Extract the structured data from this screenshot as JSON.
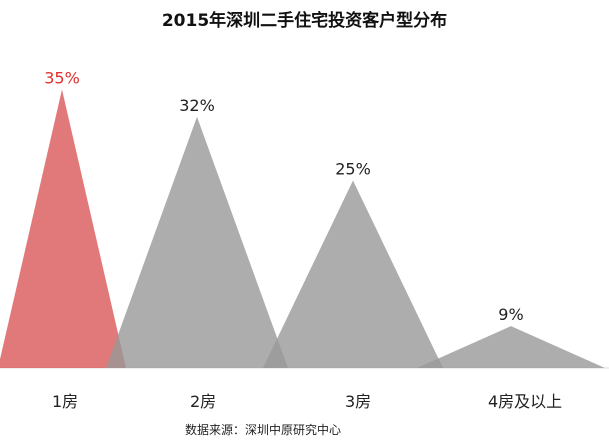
{
  "chart_data": {
    "type": "area",
    "title": "2015年深圳二手住宅投资客户型分布",
    "categories": [
      "1房",
      "2房",
      "3房",
      "4房及以上"
    ],
    "values": [
      35,
      32,
      25,
      9
    ],
    "data_labels": [
      "35%",
      "32%",
      "25%",
      "9%"
    ],
    "highlight_index": 0,
    "colors": {
      "highlight": "#d95657",
      "default": "#999999"
    },
    "grid": false,
    "legend": "none"
  },
  "source": "数据来源：深圳中原研究中心"
}
